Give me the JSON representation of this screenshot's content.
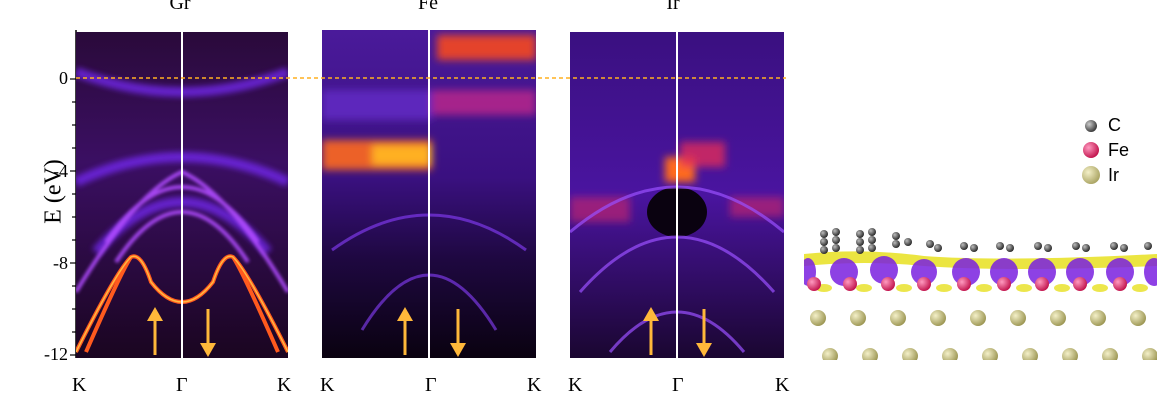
{
  "panels": [
    {
      "id": "gr",
      "title": "Gr",
      "k_left": "K",
      "k_mid": "Γ",
      "k_right": "K"
    },
    {
      "id": "fe",
      "title": "Fe",
      "k_left": "K",
      "k_mid": "Γ",
      "k_right": "K"
    },
    {
      "id": "ir",
      "title": "Ir",
      "k_left": "K",
      "k_mid": "Γ",
      "k_right": "K"
    }
  ],
  "yaxis": {
    "label": "E (eV)",
    "ticks": [
      "0",
      "-4",
      "-8",
      "-12"
    ]
  },
  "legend": {
    "items": [
      {
        "label": "C",
        "color": "#555555"
      },
      {
        "label": "Fe",
        "color": "#e0306a"
      },
      {
        "label": "Ir",
        "color": "#c9c48a"
      }
    ]
  }
}
